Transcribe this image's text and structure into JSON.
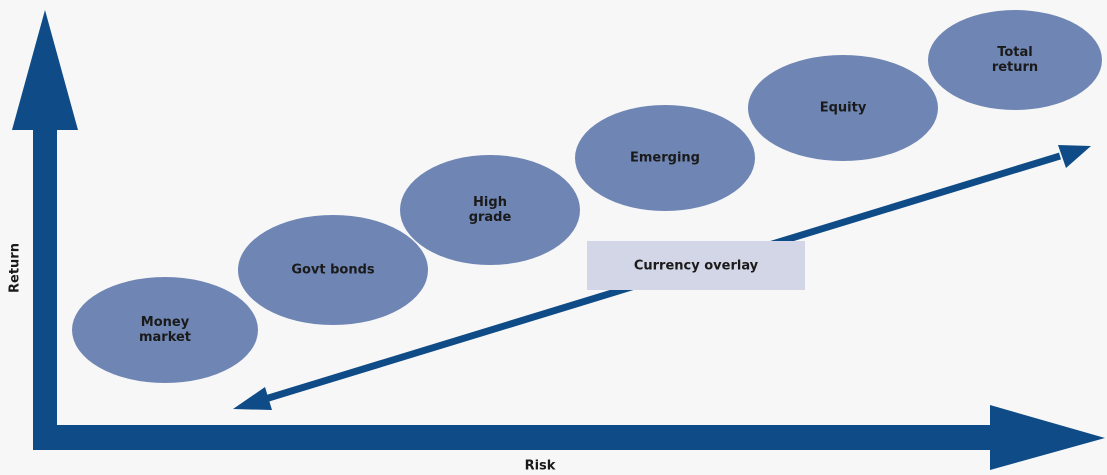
{
  "axes": {
    "x_label": "Risk",
    "y_label": "Return"
  },
  "nodes": [
    {
      "lines": [
        "Money",
        "market"
      ]
    },
    {
      "lines": [
        "Govt bonds"
      ]
    },
    {
      "lines": [
        "High",
        "grade"
      ]
    },
    {
      "lines": [
        "Emerging"
      ]
    },
    {
      "lines": [
        "Equity"
      ]
    },
    {
      "lines": [
        "Total",
        "return"
      ]
    }
  ],
  "overlay": {
    "label": "Currency overlay"
  }
}
